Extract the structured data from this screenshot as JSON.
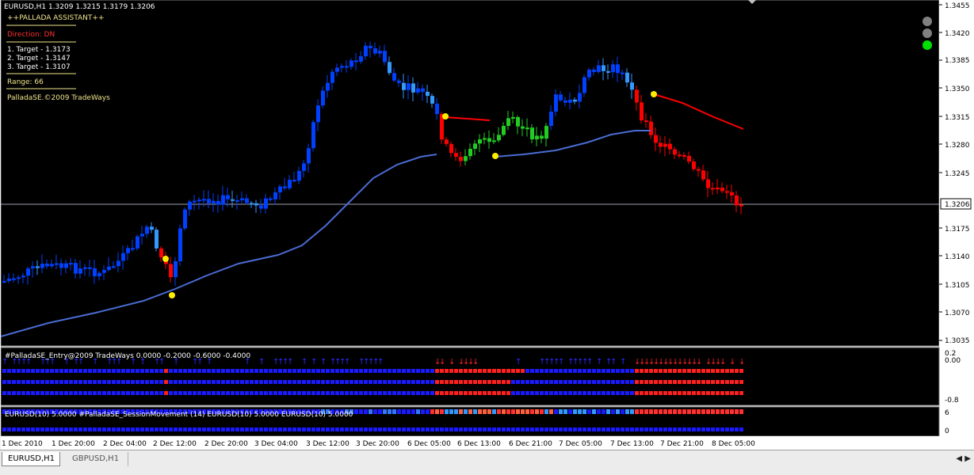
{
  "header": {
    "symbol_line": "EURUSD,H1  1.3209 1.3215 1.3179 1.3206"
  },
  "assistant": {
    "title": "++PALLADA ASSISTANT++",
    "direction": "Direction: DN",
    "targets": [
      "1. Target - 1.3173",
      "2. Target - 1.3147",
      "3. Target - 1.3107"
    ],
    "range": "Range: 66",
    "copyright": "PalladaSE.©2009 TradeWays"
  },
  "price_axis": {
    "labels": [
      "1.3455",
      "1.3420",
      "1.3385",
      "1.3350",
      "1.3315",
      "1.3280",
      "1.3245",
      "1.3175",
      "1.3140",
      "1.3105",
      "1.3070",
      "1.3035"
    ],
    "current_price": "1.3206"
  },
  "indicator1": {
    "title": "#PalladaSE_Entry@2009 TradeWays 0.0000 -0.2000 -0.6000 -0.4000",
    "axis_labels": [
      "0.2",
      "0.00",
      "-0.8"
    ]
  },
  "indicator2": {
    "title": "EURUSD(10) 5.0000  #PalladaSE_SessionMovement (14)  EURUSD(10) 5.0000  EURUSD(10) 5.0000",
    "axis_labels": [
      "6",
      "0"
    ]
  },
  "time_axis": {
    "labels": [
      "1 Dec 2010",
      "1 Dec 20:00",
      "2 Dec 04:00",
      "2 Dec 12:00",
      "2 Dec 20:00",
      "3 Dec 04:00",
      "3 Dec 12:00",
      "3 Dec 20:00",
      "6 Dec 05:00",
      "6 Dec 13:00",
      "6 Dec 21:00",
      "7 Dec 05:00",
      "7 Dec 13:00",
      "7 Dec 21:00",
      "8 Dec 05:00"
    ]
  },
  "tabs": [
    {
      "label": "EURUSD,H1",
      "active": true
    },
    {
      "label": "GBPUSD,H1",
      "active": false
    }
  ],
  "colors": {
    "background": "#000000",
    "bull": "#0040ff",
    "bull_light": "#3399ff",
    "bear": "#ff0000",
    "neutral": "#22cc22",
    "ma": "#4a6cd4",
    "signal": "#ffee00",
    "text_info": "#f0e68c",
    "direction": "#ff3030"
  },
  "status_lights": [
    "gray",
    "gray",
    "green"
  ]
}
